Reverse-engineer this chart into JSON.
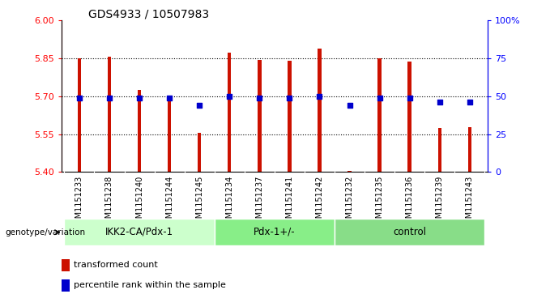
{
  "title": "GDS4933 / 10507983",
  "samples": [
    "GSM1151233",
    "GSM1151238",
    "GSM1151240",
    "GSM1151244",
    "GSM1151245",
    "GSM1151234",
    "GSM1151237",
    "GSM1151241",
    "GSM1151242",
    "GSM1151232",
    "GSM1151235",
    "GSM1151236",
    "GSM1151239",
    "GSM1151243"
  ],
  "bar_values": [
    5.851,
    5.856,
    5.724,
    5.702,
    5.554,
    5.872,
    5.844,
    5.841,
    5.888,
    5.404,
    5.851,
    5.838,
    5.574,
    5.578
  ],
  "dot_values": [
    49,
    49,
    49,
    49,
    44,
    50,
    49,
    49,
    50,
    44,
    49,
    49,
    46,
    46
  ],
  "groups": [
    {
      "label": "IKK2-CA/Pdx-1",
      "start": 0,
      "end": 5
    },
    {
      "label": "Pdx-1+/-",
      "start": 5,
      "end": 9
    },
    {
      "label": "control",
      "start": 9,
      "end": 14
    }
  ],
  "group_colors": [
    "#ccffcc",
    "#88ee88",
    "#88dd88"
  ],
  "ylim_left": [
    5.4,
    6.0
  ],
  "ylim_right": [
    0,
    100
  ],
  "yticks_left": [
    5.4,
    5.55,
    5.7,
    5.85,
    6.0
  ],
  "yticks_right": [
    0,
    25,
    50,
    75,
    100
  ],
  "bar_color": "#cc1100",
  "dot_color": "#0000cc",
  "bar_width": 0.12,
  "legend_label_bar": "transformed count",
  "legend_label_dot": "percentile rank within the sample",
  "group_label": "genotype/variation",
  "plot_bg": "#ffffff",
  "label_bg": "#cccccc"
}
